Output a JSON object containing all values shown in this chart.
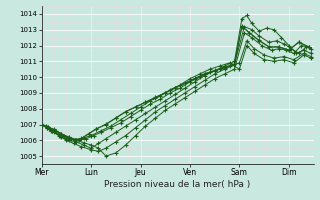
{
  "bg_color": "#c8e8e0",
  "plot_bg_color": "#c8e8e0",
  "grid_major_color": "#ffffff",
  "grid_minor_color": "#e8d8d8",
  "vline_color": "#7a9a8a",
  "line_color": "#1a5e1a",
  "xlabel": "Pression niveau de la mer( hPa )",
  "ylim": [
    1004.5,
    1014.5
  ],
  "yticks": [
    1005,
    1006,
    1007,
    1008,
    1009,
    1010,
    1011,
    1012,
    1013,
    1014
  ],
  "xtick_labels": [
    "Mer",
    "Lun",
    "Jeu",
    "Ven",
    "Sam",
    "Dim"
  ],
  "xtick_positions": [
    0,
    1,
    2,
    3,
    4,
    5
  ],
  "xlim": [
    0,
    5.5
  ],
  "lines": [
    [
      0.0,
      1007.0,
      0.08,
      1006.9,
      0.15,
      1006.7,
      0.25,
      1006.5,
      0.4,
      1006.2,
      0.55,
      1006.0,
      0.7,
      1005.9,
      0.85,
      1005.7,
      1.0,
      1005.5,
      1.15,
      1005.8,
      1.3,
      1006.1,
      1.5,
      1006.5,
      1.7,
      1006.9,
      1.9,
      1007.3,
      2.1,
      1007.7,
      2.3,
      1008.1,
      2.5,
      1008.5,
      2.7,
      1008.9,
      2.9,
      1009.3,
      3.1,
      1009.7,
      3.3,
      1010.1,
      3.5,
      1010.4,
      3.7,
      1010.7,
      3.9,
      1011.0,
      4.05,
      1013.7,
      4.15,
      1013.9,
      4.25,
      1013.4,
      4.4,
      1012.9,
      4.55,
      1013.1,
      4.7,
      1013.0,
      4.85,
      1012.5,
      5.0,
      1012.0,
      5.15,
      1011.5,
      5.3,
      1011.7,
      5.45,
      1011.5
    ],
    [
      0.0,
      1007.0,
      0.1,
      1006.8,
      0.2,
      1006.6,
      0.35,
      1006.3,
      0.5,
      1006.0,
      0.65,
      1005.8,
      0.8,
      1005.6,
      1.0,
      1005.4,
      1.15,
      1005.3,
      1.3,
      1005.5,
      1.5,
      1005.9,
      1.7,
      1006.3,
      1.9,
      1006.8,
      2.1,
      1007.3,
      2.3,
      1007.8,
      2.5,
      1008.2,
      2.7,
      1008.6,
      2.9,
      1009.0,
      3.1,
      1009.4,
      3.3,
      1009.8,
      3.5,
      1010.2,
      3.7,
      1010.5,
      3.9,
      1010.8,
      4.1,
      1013.2,
      4.25,
      1013.0,
      4.4,
      1012.6,
      4.6,
      1012.2,
      4.75,
      1012.3,
      4.9,
      1012.1,
      5.05,
      1011.8,
      5.2,
      1011.5,
      5.35,
      1011.9,
      5.45,
      1011.8
    ],
    [
      0.0,
      1007.0,
      0.12,
      1006.85,
      0.25,
      1006.7,
      0.4,
      1006.4,
      0.55,
      1006.2,
      0.7,
      1006.0,
      0.85,
      1005.85,
      1.0,
      1005.7,
      1.15,
      1005.5,
      1.3,
      1005.0,
      1.5,
      1005.2,
      1.7,
      1005.7,
      1.9,
      1006.3,
      2.1,
      1006.9,
      2.3,
      1007.4,
      2.5,
      1007.9,
      2.7,
      1008.3,
      2.9,
      1008.7,
      3.1,
      1009.1,
      3.3,
      1009.5,
      3.5,
      1009.9,
      3.7,
      1010.2,
      3.9,
      1010.5,
      4.1,
      1012.8,
      4.25,
      1012.5,
      4.45,
      1012.0,
      4.65,
      1011.7,
      4.8,
      1011.8,
      4.95,
      1011.7,
      5.1,
      1011.5,
      5.25,
      1012.0,
      5.4,
      1011.9
    ],
    [
      0.0,
      1007.0,
      0.15,
      1006.8,
      0.3,
      1006.6,
      0.45,
      1006.3,
      0.6,
      1006.1,
      0.75,
      1006.0,
      0.9,
      1006.1,
      1.05,
      1006.3,
      1.2,
      1006.5,
      1.4,
      1006.8,
      1.6,
      1007.1,
      1.8,
      1007.5,
      2.0,
      1007.9,
      2.2,
      1008.3,
      2.4,
      1008.6,
      2.6,
      1009.0,
      2.8,
      1009.3,
      3.0,
      1009.7,
      3.2,
      1010.0,
      3.4,
      1010.3,
      3.6,
      1010.5,
      3.8,
      1010.7,
      4.0,
      1010.9,
      4.15,
      1012.3,
      4.3,
      1011.8,
      4.5,
      1011.4,
      4.7,
      1011.2,
      4.9,
      1011.3,
      5.1,
      1011.1,
      5.3,
      1011.5,
      5.45,
      1011.3
    ],
    [
      0.0,
      1007.0,
      0.12,
      1006.85,
      0.25,
      1006.65,
      0.4,
      1006.4,
      0.55,
      1006.2,
      0.7,
      1006.05,
      0.85,
      1006.15,
      1.0,
      1006.3,
      1.2,
      1006.6,
      1.4,
      1006.9,
      1.6,
      1007.3,
      1.8,
      1007.7,
      2.0,
      1008.1,
      2.2,
      1008.5,
      2.4,
      1008.8,
      2.6,
      1009.2,
      2.8,
      1009.5,
      3.0,
      1009.9,
      3.2,
      1010.2,
      3.4,
      1010.5,
      3.6,
      1010.7,
      3.8,
      1010.9,
      4.0,
      1010.5,
      4.15,
      1012.0,
      4.3,
      1011.5,
      4.5,
      1011.1,
      4.7,
      1011.0,
      4.9,
      1011.1,
      5.1,
      1010.9,
      5.3,
      1011.4,
      5.45,
      1011.2
    ],
    [
      0.0,
      1007.0,
      0.1,
      1006.8,
      0.22,
      1006.6,
      0.38,
      1006.3,
      0.52,
      1006.1,
      0.67,
      1006.0,
      0.8,
      1006.1,
      0.95,
      1006.4,
      1.1,
      1006.7,
      1.3,
      1007.0,
      1.5,
      1007.4,
      1.7,
      1007.8,
      1.9,
      1008.1,
      2.1,
      1008.4,
      2.3,
      1008.7,
      2.5,
      1009.0,
      2.7,
      1009.3,
      2.9,
      1009.6,
      3.1,
      1009.9,
      3.3,
      1010.2,
      3.5,
      1010.4,
      3.7,
      1010.6,
      3.9,
      1010.8,
      4.05,
      1013.2,
      4.2,
      1012.8,
      4.4,
      1012.3,
      4.6,
      1011.9,
      4.8,
      1011.9,
      5.0,
      1011.7,
      5.2,
      1012.2,
      5.4,
      1011.9
    ],
    [
      0.0,
      1007.0,
      0.1,
      1006.82,
      0.22,
      1006.62,
      0.37,
      1006.38,
      0.52,
      1006.15,
      0.67,
      1006.02,
      0.8,
      1006.12,
      0.95,
      1006.42,
      1.1,
      1006.72,
      1.3,
      1007.02,
      1.5,
      1007.42,
      1.7,
      1007.82,
      1.9,
      1008.12,
      2.1,
      1008.42,
      2.3,
      1008.72,
      2.5,
      1009.02,
      2.7,
      1009.32,
      2.9,
      1009.62,
      3.1,
      1009.92,
      3.3,
      1010.22,
      3.5,
      1010.42,
      3.7,
      1010.62,
      3.9,
      1010.82,
      4.05,
      1013.22,
      4.2,
      1012.82,
      4.4,
      1012.32,
      4.6,
      1011.92,
      4.8,
      1011.92,
      5.0,
      1011.72,
      5.2,
      1012.22,
      5.4,
      1011.92
    ]
  ]
}
